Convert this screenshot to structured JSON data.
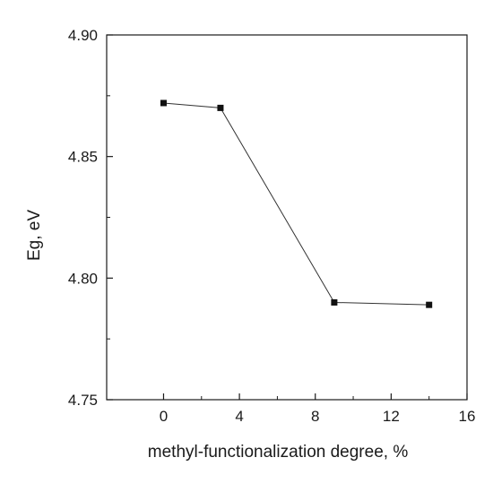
{
  "chart_data": {
    "type": "line",
    "title": "",
    "xlabel": "methyl-functionalization degree, %",
    "ylabel": "Eg, eV",
    "xlim": [
      -3,
      16
    ],
    "ylim": [
      4.75,
      4.9
    ],
    "x_ticks": [
      0,
      4,
      8,
      12,
      16
    ],
    "x_tick_labels": [
      "0",
      "4",
      "8",
      "12",
      "16"
    ],
    "y_ticks": [
      4.75,
      4.8,
      4.85,
      4.9
    ],
    "y_tick_labels": [
      "4.75",
      "4.80",
      "4.85",
      "4.90"
    ],
    "grid": false,
    "marker": "square",
    "series": [
      {
        "x": [
          0,
          3,
          9,
          14
        ],
        "y": [
          4.872,
          4.87,
          4.79,
          4.789
        ]
      }
    ]
  }
}
